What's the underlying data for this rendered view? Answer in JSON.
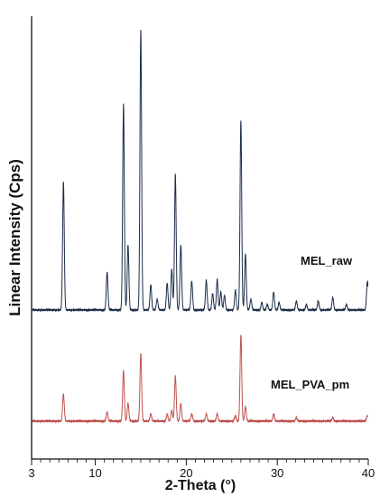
{
  "chart_data": {
    "type": "line",
    "xlabel": "2-Theta (°)",
    "ylabel": "Linear Intensity (Cps)",
    "xlim": [
      3,
      40
    ],
    "x_ticks": [
      3,
      10,
      20,
      30,
      40
    ],
    "y_ticks": [],
    "grid": false,
    "legend": "inline labels at right",
    "series": [
      {
        "name": "MEL_raw",
        "color": "#1c2e4a",
        "baseline": 0,
        "peaks": [
          {
            "x": 6.5,
            "y": 142
          },
          {
            "x": 11.3,
            "y": 42
          },
          {
            "x": 13.1,
            "y": 228
          },
          {
            "x": 13.6,
            "y": 72
          },
          {
            "x": 15.0,
            "y": 310
          },
          {
            "x": 16.1,
            "y": 28
          },
          {
            "x": 16.8,
            "y": 12
          },
          {
            "x": 17.9,
            "y": 30
          },
          {
            "x": 18.4,
            "y": 45
          },
          {
            "x": 18.8,
            "y": 150
          },
          {
            "x": 19.4,
            "y": 72
          },
          {
            "x": 20.6,
            "y": 32
          },
          {
            "x": 22.2,
            "y": 33
          },
          {
            "x": 22.9,
            "y": 18
          },
          {
            "x": 23.4,
            "y": 34
          },
          {
            "x": 23.8,
            "y": 20
          },
          {
            "x": 24.2,
            "y": 16
          },
          {
            "x": 25.4,
            "y": 22
          },
          {
            "x": 26.0,
            "y": 210
          },
          {
            "x": 26.5,
            "y": 62
          },
          {
            "x": 27.1,
            "y": 12
          },
          {
            "x": 28.3,
            "y": 8
          },
          {
            "x": 28.9,
            "y": 6
          },
          {
            "x": 29.6,
            "y": 20
          },
          {
            "x": 30.2,
            "y": 8
          },
          {
            "x": 32.1,
            "y": 10
          },
          {
            "x": 33.2,
            "y": 6
          },
          {
            "x": 34.5,
            "y": 10
          },
          {
            "x": 36.1,
            "y": 14
          },
          {
            "x": 37.6,
            "y": 6
          },
          {
            "x": 39.9,
            "y": 32
          }
        ]
      },
      {
        "name": "MEL_PVA_pm",
        "color": "#c0504d",
        "baseline": 0,
        "peaks": [
          {
            "x": 6.5,
            "y": 30
          },
          {
            "x": 11.3,
            "y": 10
          },
          {
            "x": 13.1,
            "y": 56
          },
          {
            "x": 13.6,
            "y": 20
          },
          {
            "x": 15.0,
            "y": 75
          },
          {
            "x": 16.1,
            "y": 8
          },
          {
            "x": 17.9,
            "y": 8
          },
          {
            "x": 18.4,
            "y": 12
          },
          {
            "x": 18.8,
            "y": 50
          },
          {
            "x": 19.4,
            "y": 20
          },
          {
            "x": 20.6,
            "y": 8
          },
          {
            "x": 22.2,
            "y": 8
          },
          {
            "x": 23.4,
            "y": 8
          },
          {
            "x": 25.4,
            "y": 6
          },
          {
            "x": 26.0,
            "y": 96
          },
          {
            "x": 26.5,
            "y": 16
          },
          {
            "x": 29.6,
            "y": 8
          },
          {
            "x": 32.1,
            "y": 4
          },
          {
            "x": 36.1,
            "y": 4
          },
          {
            "x": 39.9,
            "y": 6
          }
        ]
      }
    ]
  }
}
